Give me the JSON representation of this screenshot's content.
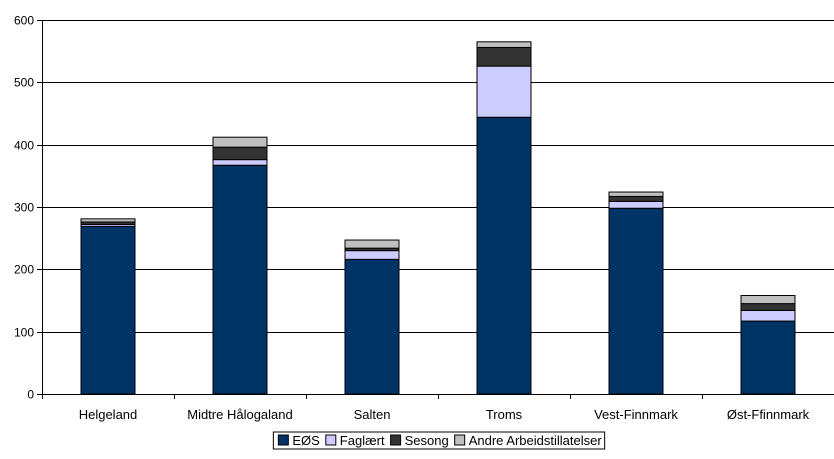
{
  "chart_data": {
    "type": "bar",
    "stacked": true,
    "title": "",
    "xlabel": "",
    "ylabel": "",
    "ylim": [
      0,
      600
    ],
    "yticks": [
      0,
      100,
      200,
      300,
      400,
      500,
      600
    ],
    "grid": true,
    "legend_position": "bottom",
    "categories": [
      "Helgeland",
      "Midtre Hålogaland",
      "Salten",
      "Troms",
      "Vest-Finnmark",
      "Øst-Ffinnmark"
    ],
    "series": [
      {
        "name": "EØS",
        "color": "#003366",
        "values": [
          269,
          367,
          216,
          444,
          298,
          117
        ]
      },
      {
        "name": "Faglært",
        "color": "#CCCCFF",
        "values": [
          3,
          9,
          14,
          82,
          11,
          17
        ]
      },
      {
        "name": "Sesong",
        "color": "#333333",
        "values": [
          4,
          20,
          4,
          30,
          8,
          11
        ]
      },
      {
        "name": "Andre Arbeidstillatelser",
        "color": "#C0C0C0",
        "values": [
          5,
          16,
          13,
          9,
          7,
          13
        ]
      }
    ]
  }
}
